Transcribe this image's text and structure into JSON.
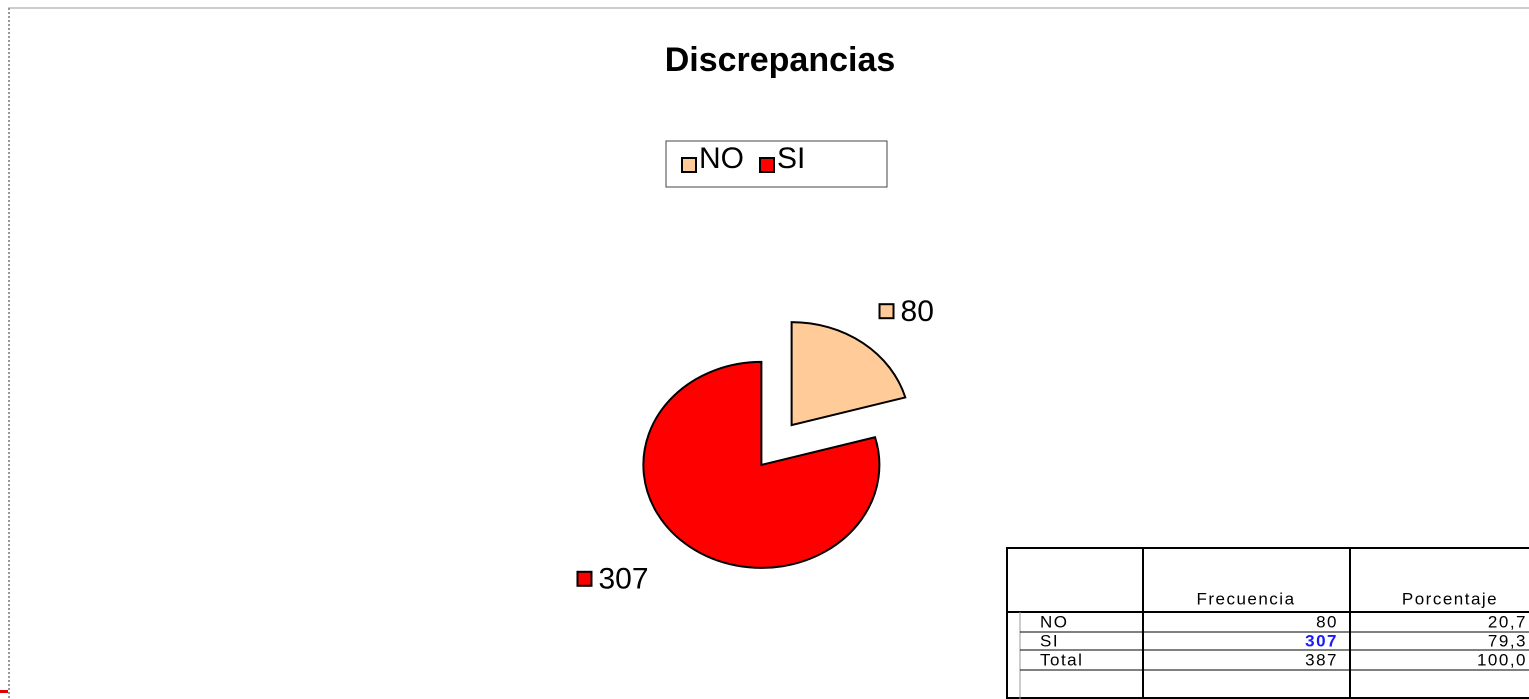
{
  "chart_data": {
    "type": "pie",
    "title": "Discrepancias",
    "categories": [
      "NO",
      "SI"
    ],
    "values": [
      80,
      307
    ],
    "colors": [
      "#ffcc99",
      "#ff0000"
    ],
    "legend": "top"
  },
  "table": {
    "header": [
      "Frecuencia",
      "Porcentaje"
    ],
    "rows": [
      [
        "NO",
        "80",
        "20,7"
      ],
      [
        "SI",
        "307",
        "79,3"
      ],
      [
        "Total",
        "387",
        "100,0"
      ]
    ]
  }
}
